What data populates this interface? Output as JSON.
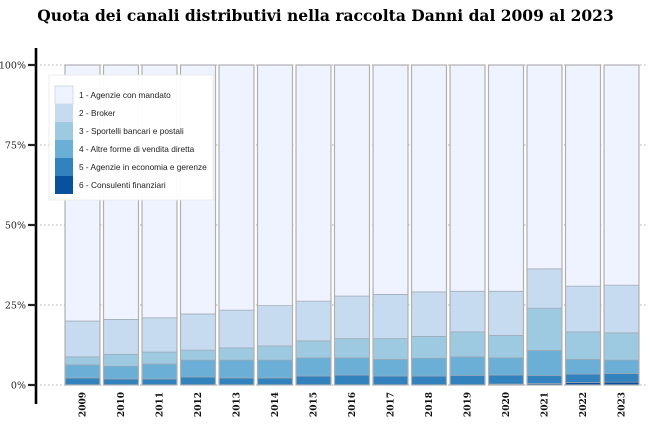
{
  "chart_data": {
    "type": "bar",
    "stacked": true,
    "normalized": true,
    "title": "Quota dei canali distributivi nella raccolta Danni dal 2009 al 2023",
    "xlabel": "",
    "ylabel": "",
    "ylim": [
      0,
      100
    ],
    "yticks": [
      0,
      25,
      50,
      75,
      100
    ],
    "ytick_labels": [
      "0%",
      "25%",
      "50%",
      "75%",
      "100%"
    ],
    "grid": "horizontal dotted",
    "legend_position": "top-left",
    "categories": [
      "2009",
      "2010",
      "2011",
      "2012",
      "2013",
      "2014",
      "2015",
      "2016",
      "2017",
      "2018",
      "2019",
      "2020",
      "2021",
      "2022",
      "2023"
    ],
    "series": [
      {
        "name": "6 - Consulenti finanziari",
        "color": "#08519c",
        "values": [
          0.0,
          0.0,
          0.0,
          0.0,
          0.0,
          0.0,
          0.0,
          0.0,
          0.0,
          0.0,
          0.0,
          0.3,
          0.5,
          0.8,
          0.9
        ]
      },
      {
        "name": "5 - Agenzie in economia e gerenze",
        "color": "#3182bd",
        "values": [
          2.2,
          1.9,
          1.9,
          2.5,
          2.2,
          2.2,
          2.8,
          3.1,
          2.8,
          2.8,
          3.0,
          2.8,
          2.5,
          2.6,
          2.7
        ]
      },
      {
        "name": "4 - Altre forme di vendita diretta",
        "color": "#6baed6",
        "values": [
          4.1,
          4.0,
          4.7,
          5.3,
          5.6,
          5.6,
          5.7,
          5.4,
          5.2,
          5.6,
          5.8,
          5.4,
          7.8,
          4.6,
          4.2
        ]
      },
      {
        "name": "3 - Sportelli bancari e postali",
        "color": "#9ecae1",
        "values": [
          2.5,
          3.7,
          3.7,
          3.1,
          3.8,
          4.4,
          5.3,
          6.0,
          6.5,
          6.8,
          7.8,
          7.0,
          13.2,
          8.6,
          8.5
        ]
      },
      {
        "name": "2 - Broker",
        "color": "#c6dbef",
        "values": [
          11.2,
          10.9,
          10.7,
          11.3,
          11.8,
          12.6,
          12.4,
          13.3,
          13.8,
          13.9,
          12.7,
          13.8,
          12.3,
          14.3,
          14.9
        ]
      },
      {
        "name": "1 - Agenzie con mandato",
        "color": "#eff3ff",
        "values": [
          80.0,
          79.5,
          79.0,
          77.8,
          76.6,
          75.2,
          73.8,
          72.2,
          71.7,
          70.9,
          70.7,
          70.7,
          63.7,
          69.1,
          68.8
        ]
      }
    ],
    "legend_order": [
      "1 - Agenzie con mandato",
      "2 - Broker",
      "3 - Sportelli bancari e postali",
      "4 - Altre forme di vendita diretta",
      "5 - Agenzie in economia e gerenze",
      "6 - Consulenti finanziari"
    ]
  }
}
